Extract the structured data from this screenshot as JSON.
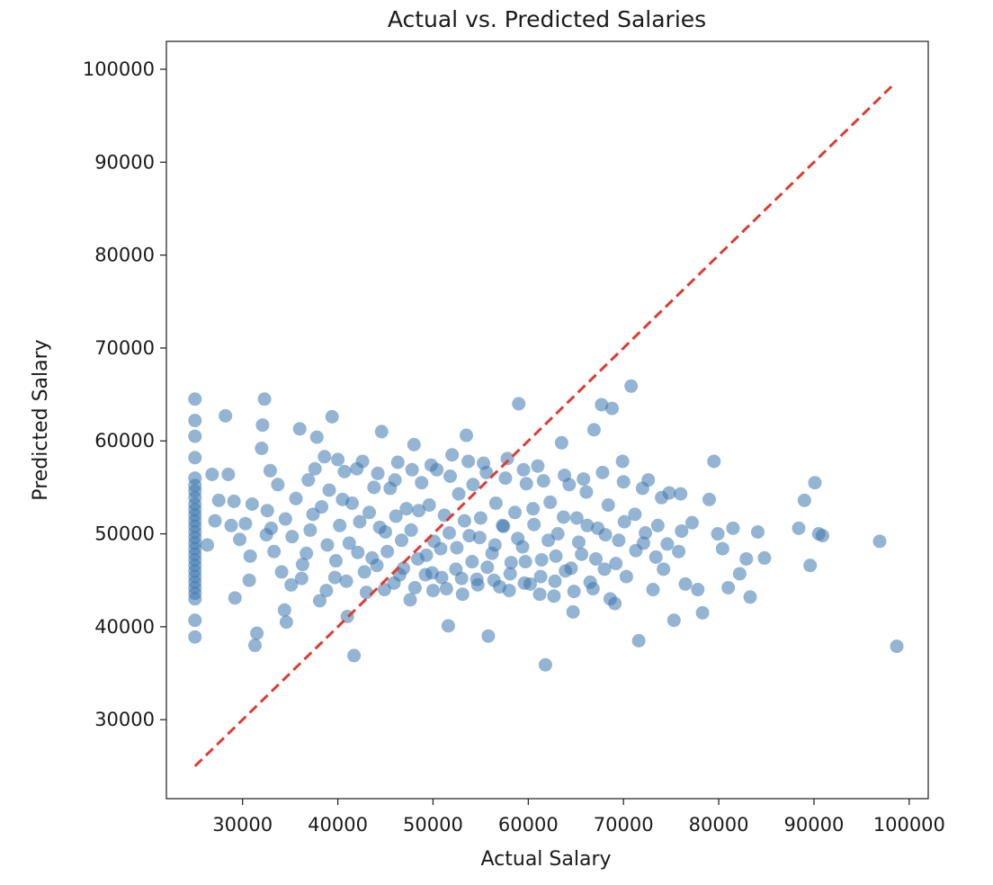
{
  "chart_data": {
    "type": "scatter",
    "title": "Actual vs. Predicted Salaries",
    "xlabel": "Actual Salary",
    "ylabel": "Predicted Salary",
    "xlim": [
      22000,
      102000
    ],
    "ylim": [
      21500,
      103000
    ],
    "xticks": [
      30000,
      40000,
      50000,
      60000,
      70000,
      80000,
      90000,
      100000
    ],
    "yticks": [
      30000,
      40000,
      50000,
      60000,
      70000,
      80000,
      90000,
      100000
    ],
    "grid": false,
    "point_color": "#3d76ae",
    "point_alpha": 0.55,
    "reference_line": {
      "style": "dashed",
      "color": "#e03a32",
      "from": [
        25000,
        25000
      ],
      "to": [
        98500,
        98500
      ]
    },
    "series": [
      {
        "points": [
          [
            25000,
            64500
          ],
          [
            25000,
            62200
          ],
          [
            25000,
            60500
          ],
          [
            25000,
            58200
          ],
          [
            25000,
            56000
          ],
          [
            25000,
            55200
          ],
          [
            25000,
            54600
          ],
          [
            25000,
            53900
          ],
          [
            25000,
            53200
          ],
          [
            25000,
            52600
          ],
          [
            25000,
            52000
          ],
          [
            25000,
            51400
          ],
          [
            25000,
            50800
          ],
          [
            25000,
            50200
          ],
          [
            25000,
            49600
          ],
          [
            25000,
            49000
          ],
          [
            25000,
            48400
          ],
          [
            25000,
            47800
          ],
          [
            25000,
            47200
          ],
          [
            25000,
            46600
          ],
          [
            25000,
            46000
          ],
          [
            25000,
            45400
          ],
          [
            25000,
            44800
          ],
          [
            25000,
            44200
          ],
          [
            25000,
            43600
          ],
          [
            25000,
            43000
          ],
          [
            25000,
            40700
          ],
          [
            25000,
            38900
          ],
          [
            26300,
            48800
          ],
          [
            26800,
            56400
          ],
          [
            27500,
            53600
          ],
          [
            28200,
            62700
          ],
          [
            28500,
            56400
          ],
          [
            28800,
            50900
          ],
          [
            29100,
            53500
          ],
          [
            29700,
            49400
          ],
          [
            30300,
            51100
          ],
          [
            30700,
            45000
          ],
          [
            31000,
            53200
          ],
          [
            31300,
            38000
          ],
          [
            31500,
            39300
          ],
          [
            32000,
            59200
          ],
          [
            32100,
            61700
          ],
          [
            32300,
            64500
          ],
          [
            32600,
            52500
          ],
          [
            32900,
            56800
          ],
          [
            33000,
            50600
          ],
          [
            33300,
            48100
          ],
          [
            33700,
            55300
          ],
          [
            34100,
            45900
          ],
          [
            34400,
            41800
          ],
          [
            34600,
            40500
          ],
          [
            35200,
            49700
          ],
          [
            35600,
            53800
          ],
          [
            36000,
            61300
          ],
          [
            36300,
            46700
          ],
          [
            36900,
            55800
          ],
          [
            37400,
            52100
          ],
          [
            37800,
            60400
          ],
          [
            38100,
            42800
          ],
          [
            38600,
            58300
          ],
          [
            38900,
            48800
          ],
          [
            39100,
            54700
          ],
          [
            39400,
            62600
          ],
          [
            39700,
            45300
          ],
          [
            40200,
            50900
          ],
          [
            40700,
            56700
          ],
          [
            41000,
            41100
          ],
          [
            41500,
            53300
          ],
          [
            41700,
            36900
          ],
          [
            42100,
            48000
          ],
          [
            42600,
            57800
          ],
          [
            43000,
            43700
          ],
          [
            43300,
            52300
          ],
          [
            43800,
            55000
          ],
          [
            44100,
            46600
          ],
          [
            44600,
            61000
          ],
          [
            45000,
            50200
          ],
          [
            45500,
            54900
          ],
          [
            45900,
            44700
          ],
          [
            46300,
            57700
          ],
          [
            46700,
            49300
          ],
          [
            47200,
            52700
          ],
          [
            47600,
            42900
          ],
          [
            48000,
            59600
          ],
          [
            48400,
            47300
          ],
          [
            48800,
            55500
          ],
          [
            49200,
            45600
          ],
          [
            49600,
            53100
          ],
          [
            50000,
            43900
          ],
          [
            50400,
            56900
          ],
          [
            50800,
            48400
          ],
          [
            51200,
            52000
          ],
          [
            51600,
            40100
          ],
          [
            52000,
            58500
          ],
          [
            52400,
            46200
          ],
          [
            52700,
            54300
          ],
          [
            53100,
            43500
          ],
          [
            53500,
            60600
          ],
          [
            53800,
            49800
          ],
          [
            54200,
            55300
          ],
          [
            54600,
            45100
          ],
          [
            55000,
            51700
          ],
          [
            55300,
            57600
          ],
          [
            55800,
            39000
          ],
          [
            56200,
            47900
          ],
          [
            56600,
            53300
          ],
          [
            57000,
            44300
          ],
          [
            57400,
            50800
          ],
          [
            57800,
            58100
          ],
          [
            58200,
            46900
          ],
          [
            58600,
            52300
          ],
          [
            59000,
            64000
          ],
          [
            59400,
            48600
          ],
          [
            59800,
            55400
          ],
          [
            60200,
            44600
          ],
          [
            60600,
            51000
          ],
          [
            61000,
            57300
          ],
          [
            61400,
            47200
          ],
          [
            61800,
            35900
          ],
          [
            62300,
            53400
          ],
          [
            62700,
            43300
          ],
          [
            63100,
            50000
          ],
          [
            63500,
            59800
          ],
          [
            63900,
            46000
          ],
          [
            64300,
            55300
          ],
          [
            64700,
            41600
          ],
          [
            65100,
            51700
          ],
          [
            65600,
            47800
          ],
          [
            66100,
            54500
          ],
          [
            66500,
            44800
          ],
          [
            66900,
            61200
          ],
          [
            67300,
            50600
          ],
          [
            67700,
            63900
          ],
          [
            68000,
            46200
          ],
          [
            68400,
            53100
          ],
          [
            68800,
            63500
          ],
          [
            69100,
            42500
          ],
          [
            69500,
            49300
          ],
          [
            69900,
            57800
          ],
          [
            70300,
            45400
          ],
          [
            70800,
            65900
          ],
          [
            71200,
            52100
          ],
          [
            71600,
            38500
          ],
          [
            72100,
            49000
          ],
          [
            72600,
            55800
          ],
          [
            73100,
            44000
          ],
          [
            73600,
            50900
          ],
          [
            74200,
            46200
          ],
          [
            74800,
            54400
          ],
          [
            75300,
            40700
          ],
          [
            75800,
            48100
          ],
          [
            76500,
            44600
          ],
          [
            77200,
            51200
          ],
          [
            77800,
            44000
          ],
          [
            78300,
            41500
          ],
          [
            79000,
            53700
          ],
          [
            79500,
            57800
          ],
          [
            79900,
            50000
          ],
          [
            80400,
            48400
          ],
          [
            81000,
            44200
          ],
          [
            81500,
            50600
          ],
          [
            82200,
            45700
          ],
          [
            82900,
            47300
          ],
          [
            83300,
            43200
          ],
          [
            84100,
            50200
          ],
          [
            84800,
            47400
          ],
          [
            88400,
            50600
          ],
          [
            89000,
            53600
          ],
          [
            89600,
            46600
          ],
          [
            90100,
            55500
          ],
          [
            90500,
            50000
          ],
          [
            90900,
            49800
          ],
          [
            96900,
            49200
          ],
          [
            98700,
            37900
          ],
          [
            27100,
            51400
          ],
          [
            29200,
            43100
          ],
          [
            30800,
            47600
          ],
          [
            32500,
            49900
          ],
          [
            34500,
            51600
          ],
          [
            36200,
            45200
          ],
          [
            37100,
            50400
          ],
          [
            38300,
            52900
          ],
          [
            39800,
            47100
          ],
          [
            40500,
            53700
          ],
          [
            41200,
            49000
          ],
          [
            42300,
            51300
          ],
          [
            43600,
            47400
          ],
          [
            44400,
            50700
          ],
          [
            45200,
            48100
          ],
          [
            46100,
            51900
          ],
          [
            46900,
            46300
          ],
          [
            47700,
            50400
          ],
          [
            48500,
            52500
          ],
          [
            49300,
            47700
          ],
          [
            50100,
            49200
          ],
          [
            50900,
            45300
          ],
          [
            51700,
            50100
          ],
          [
            52500,
            48500
          ],
          [
            53300,
            51400
          ],
          [
            54100,
            47000
          ],
          [
            54900,
            49600
          ],
          [
            55700,
            46400
          ],
          [
            56500,
            48800
          ],
          [
            57300,
            50900
          ],
          [
            58100,
            45700
          ],
          [
            58900,
            49500
          ],
          [
            59700,
            47000
          ],
          [
            60500,
            52700
          ],
          [
            61300,
            45400
          ],
          [
            62100,
            49300
          ],
          [
            62900,
            47600
          ],
          [
            63700,
            51800
          ],
          [
            64500,
            46300
          ],
          [
            65300,
            49100
          ],
          [
            66200,
            50900
          ],
          [
            67100,
            47300
          ],
          [
            68100,
            49900
          ],
          [
            69200,
            46800
          ],
          [
            70100,
            51300
          ],
          [
            71300,
            48200
          ],
          [
            72300,
            50100
          ],
          [
            73400,
            47500
          ],
          [
            74600,
            48900
          ],
          [
            76100,
            50300
          ],
          [
            35100,
            44500
          ],
          [
            36700,
            47900
          ],
          [
            38800,
            43900
          ],
          [
            40900,
            44900
          ],
          [
            42800,
            45900
          ],
          [
            44900,
            44000
          ],
          [
            46500,
            45600
          ],
          [
            48100,
            44200
          ],
          [
            49900,
            45800
          ],
          [
            51400,
            44100
          ],
          [
            53000,
            45200
          ],
          [
            54700,
            44500
          ],
          [
            56400,
            45000
          ],
          [
            58000,
            43900
          ],
          [
            59600,
            44700
          ],
          [
            61200,
            43500
          ],
          [
            62800,
            44900
          ],
          [
            64800,
            43800
          ],
          [
            66800,
            44100
          ],
          [
            68600,
            43000
          ],
          [
            37600,
            57000
          ],
          [
            40000,
            58000
          ],
          [
            42000,
            57000
          ],
          [
            44200,
            56500
          ],
          [
            46000,
            55800
          ],
          [
            47800,
            56900
          ],
          [
            49800,
            57400
          ],
          [
            51800,
            56200
          ],
          [
            53700,
            57800
          ],
          [
            55600,
            56600
          ],
          [
            57600,
            56000
          ],
          [
            59500,
            56900
          ],
          [
            61600,
            55700
          ],
          [
            63800,
            56300
          ],
          [
            65800,
            55900
          ],
          [
            67800,
            56600
          ],
          [
            70000,
            55600
          ],
          [
            72000,
            54900
          ],
          [
            74000,
            53900
          ],
          [
            76000,
            54300
          ]
        ]
      }
    ]
  }
}
